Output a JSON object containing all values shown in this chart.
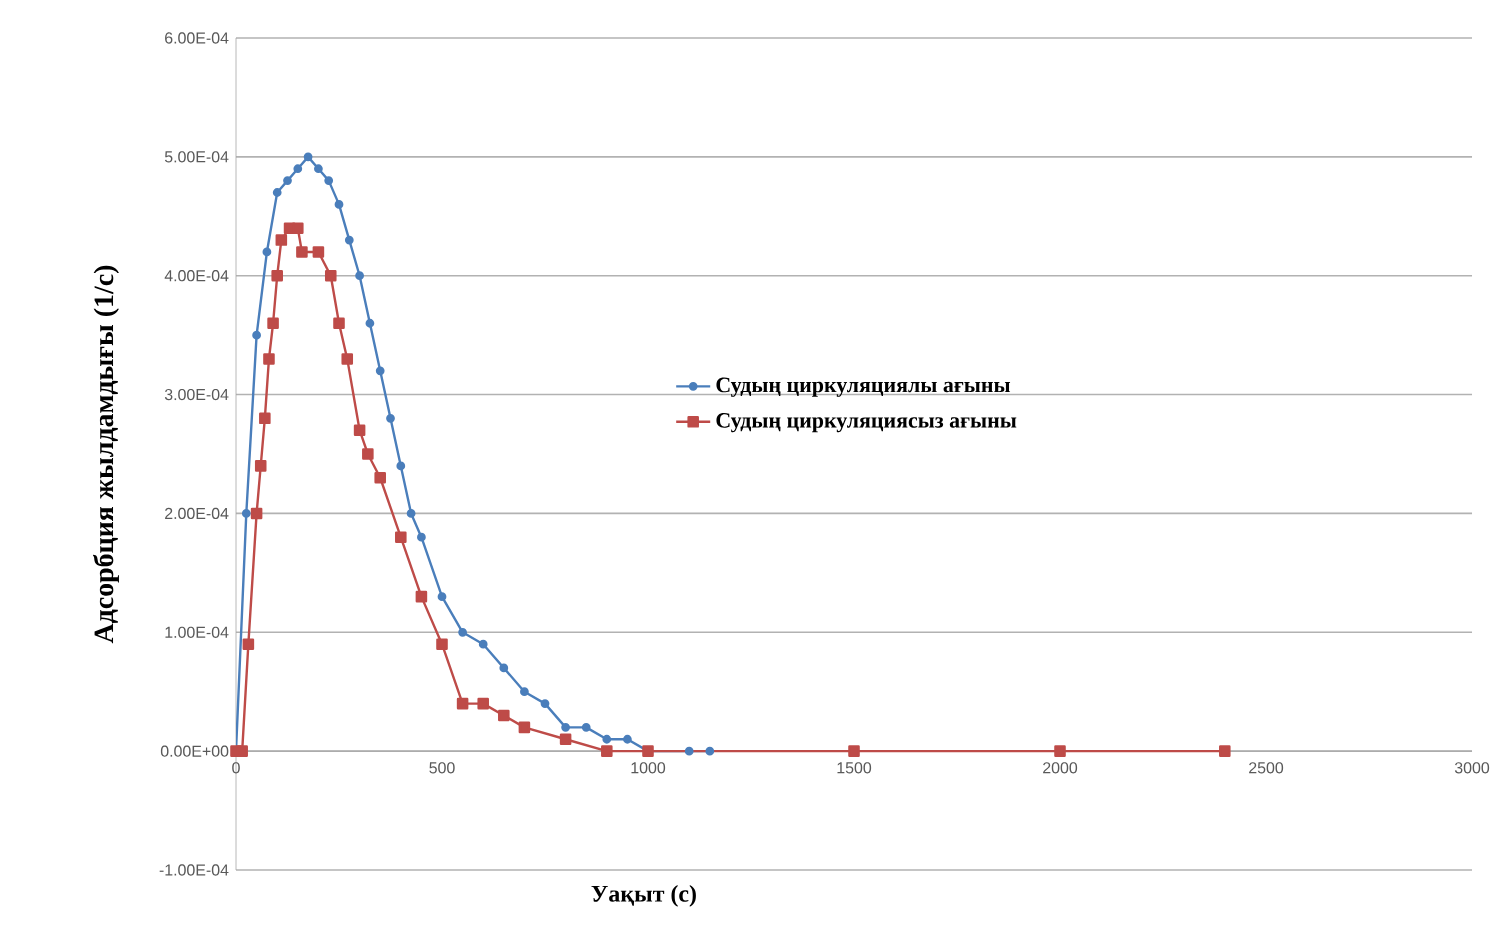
{
  "chart_data": {
    "type": "line",
    "xlabel": "Уақыт (с)",
    "ylabel": "Адсорбция жылдамдығы (1/с)",
    "series": [
      {
        "name": "Судың циркуляциялы ағыны",
        "color": "#4a7ebb",
        "marker": "circle",
        "x": [
          0,
          25,
          50,
          75,
          100,
          125,
          150,
          175,
          200,
          225,
          250,
          275,
          300,
          325,
          350,
          375,
          400,
          425,
          450,
          500,
          550,
          600,
          650,
          700,
          750,
          800,
          850,
          900,
          950,
          1000,
          1100,
          1150
        ],
        "values": [
          0,
          0.0002,
          0.00035,
          0.00042,
          0.00047,
          0.00048,
          0.00049,
          0.0005,
          0.00049,
          0.00048,
          0.00046,
          0.00043,
          0.0004,
          0.00036,
          0.00032,
          0.00028,
          0.00024,
          0.0002,
          0.00018,
          0.00013,
          0.0001,
          9e-05,
          7e-05,
          5e-05,
          4e-05,
          2e-05,
          2e-05,
          1e-05,
          1e-05,
          0,
          0,
          0
        ]
      },
      {
        "name": "Судың циркуляциясыз ағыны",
        "color": "#be4b48",
        "marker": "square",
        "x": [
          0,
          15,
          30,
          50,
          60,
          70,
          80,
          90,
          100,
          110,
          130,
          150,
          160,
          200,
          230,
          250,
          270,
          300,
          320,
          350,
          400,
          450,
          500,
          550,
          600,
          650,
          700,
          800,
          900,
          1000,
          1500,
          2000,
          2400
        ],
        "values": [
          0,
          0,
          9e-05,
          0.0002,
          0.00024,
          0.00028,
          0.00033,
          0.00036,
          0.0004,
          0.00043,
          0.00044,
          0.00044,
          0.00042,
          0.00042,
          0.0004,
          0.00036,
          0.00033,
          0.00027,
          0.00025,
          0.00023,
          0.00018,
          0.00013,
          9e-05,
          4e-05,
          4e-05,
          3e-05,
          2e-05,
          1e-05,
          0,
          0,
          0,
          0,
          0
        ]
      }
    ],
    "xlim": [
      0,
      3000
    ],
    "xticks": [
      0,
      500,
      1000,
      1500,
      2000,
      2500,
      3000
    ],
    "ylim": [
      -0.0001,
      0.0006
    ],
    "yticks": [
      {
        "value": -0.0001,
        "label": "-1.00E-04"
      },
      {
        "value": 0,
        "label": "0.00E+00"
      },
      {
        "value": 0.0001,
        "label": "1.00E-04"
      },
      {
        "value": 0.0002,
        "label": "2.00E-04"
      },
      {
        "value": 0.0003,
        "label": "3.00E-04"
      },
      {
        "value": 0.0004,
        "label": "4.00E-04"
      },
      {
        "value": 0.0005,
        "label": "5.00E-04"
      },
      {
        "value": 0.0006,
        "label": "6.00E-04"
      }
    ],
    "grid": "y",
    "legend": "right",
    "line_style": "solid"
  }
}
